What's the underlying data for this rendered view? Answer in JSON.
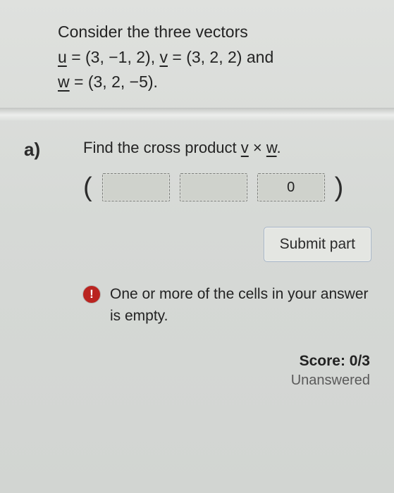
{
  "question": {
    "intro": "Consider the three vectors",
    "u_label": "u",
    "u_vec": "(3, −1, 2)",
    "v_label": "v",
    "v_vec": "(3, 2, 2)",
    "and": "and",
    "w_label": "w",
    "w_vec": "(3, 2, −5)",
    "period": "."
  },
  "part": {
    "label": "a)",
    "statement_pre": "Find the cross product ",
    "statement_v": "v",
    "statement_times": " × ",
    "statement_w": "w",
    "statement_post": "."
  },
  "answer": {
    "open": "(",
    "close": ")",
    "cells": [
      {
        "value": "",
        "placeholder": ""
      },
      {
        "value": "",
        "placeholder": ""
      },
      {
        "value": "0",
        "placeholder": ""
      }
    ]
  },
  "submit": {
    "label": "Submit part"
  },
  "warning": {
    "glyph": "!",
    "text": "One or more of the cells in your answer is empty."
  },
  "score": {
    "label": "Score:",
    "value": "0/3",
    "status": "Unanswered"
  },
  "colors": {
    "warn_bg": "#ba2420",
    "cell_bg": "#cfd2cc",
    "btn_border": "#a7b5c7"
  }
}
